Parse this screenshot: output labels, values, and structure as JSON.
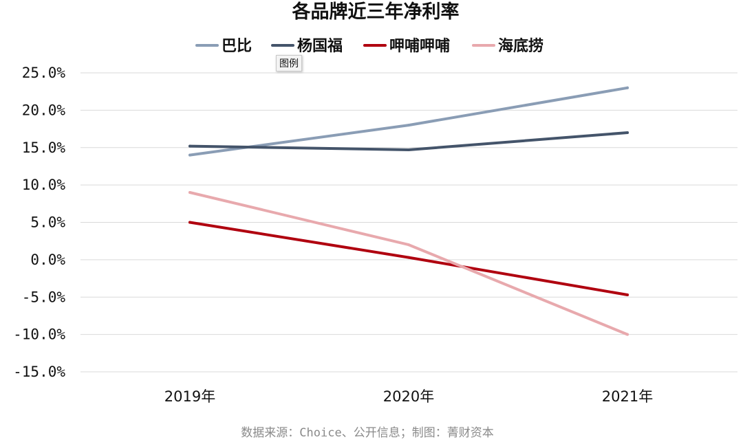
{
  "chart_data": {
    "type": "line",
    "title": "各品牌近三年净利率",
    "categories": [
      "2019年",
      "2020年",
      "2021年"
    ],
    "series": [
      {
        "name": "巴比",
        "values": [
          14.0,
          18.0,
          23.0
        ],
        "color": "#8a9db5"
      },
      {
        "name": "杨国福",
        "values": [
          15.2,
          14.7,
          17.0
        ],
        "color": "#44546a"
      },
      {
        "name": "呷哺呷哺",
        "values": [
          5.0,
          0.3,
          -4.7
        ],
        "color": "#b0000f"
      },
      {
        "name": "海底捞",
        "values": [
          9.0,
          2.0,
          -10.0
        ],
        "color": "#e8a9ad"
      }
    ],
    "ylim": [
      -15,
      25
    ],
    "yticks": [
      25,
      20,
      15,
      10,
      5,
      0,
      -5,
      -10,
      -15
    ],
    "ytick_labels": [
      "25.0%",
      "20.0%",
      "15.0%",
      "10.0%",
      "5.0%",
      "0.0%",
      "-5.0%",
      "-10.0%",
      "-15.0%"
    ],
    "xlabel": "",
    "ylabel": "",
    "grid": true,
    "legend_position": "top"
  },
  "tooltip": "图例",
  "source": "数据来源：Choice、公开信息；制图：菁财资本"
}
